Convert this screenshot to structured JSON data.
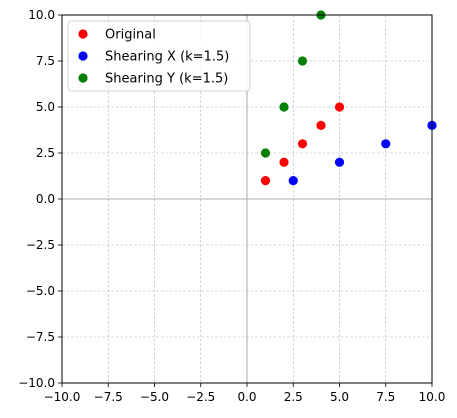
{
  "chart_data": {
    "type": "scatter",
    "xlim": [
      -10,
      10
    ],
    "ylim": [
      -10,
      10
    ],
    "xticks": [
      -10,
      -7.5,
      -5,
      -2.5,
      0,
      2.5,
      5,
      7.5,
      10
    ],
    "yticks": [
      -10,
      -7.5,
      -5,
      -2.5,
      0,
      2.5,
      5,
      7.5,
      10
    ],
    "xtick_labels": [
      "−10.0",
      "−7.5",
      "−5.0",
      "−2.5",
      "0.0",
      "2.5",
      "5.0",
      "7.5",
      "10.0"
    ],
    "ytick_labels": [
      "−10.0",
      "−7.5",
      "−5.0",
      "−2.5",
      "0.0",
      "2.5",
      "5.0",
      "7.5",
      "10.0"
    ],
    "grid": true,
    "grid_style": "dashed",
    "axis_lines_at_zero": true,
    "legend_position": "top-left",
    "series": [
      {
        "name": "Original",
        "color": "#ff0000",
        "points": [
          [
            1,
            1
          ],
          [
            2,
            2
          ],
          [
            3,
            3
          ],
          [
            4,
            4
          ],
          [
            5,
            5
          ]
        ]
      },
      {
        "name": "Shearing X (k=1.5)",
        "color": "#0000ff",
        "points": [
          [
            2.5,
            1
          ],
          [
            5,
            2
          ],
          [
            7.5,
            3
          ],
          [
            10,
            4
          ]
        ]
      },
      {
        "name": "Shearing Y (k=1.5)",
        "color": "#008000",
        "points": [
          [
            1,
            2.5
          ],
          [
            2,
            5
          ],
          [
            3,
            7.5
          ],
          [
            4,
            10
          ]
        ]
      }
    ]
  }
}
